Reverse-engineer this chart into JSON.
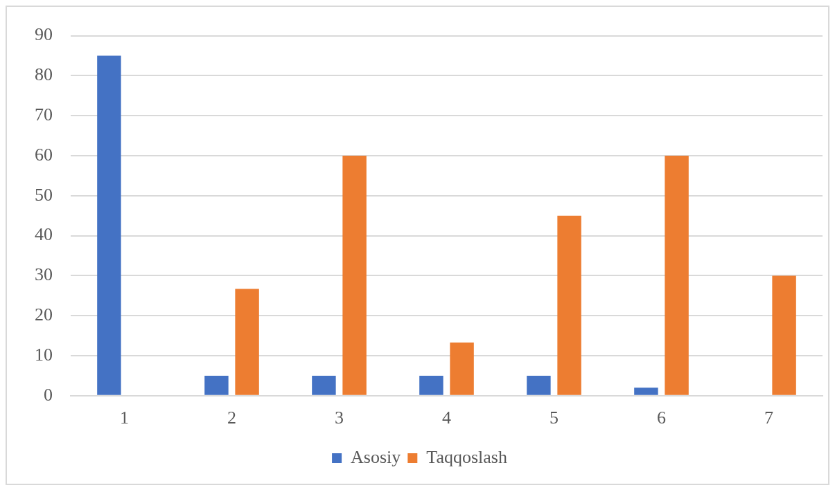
{
  "chart_data": {
    "type": "bar",
    "categories": [
      "1",
      "2",
      "3",
      "4",
      "5",
      "6",
      "7"
    ],
    "series": [
      {
        "name": "Asosiy",
        "color": "#4472c4",
        "values": [
          85,
          5,
          5,
          5,
          5,
          2,
          0
        ]
      },
      {
        "name": "Taqqoslash",
        "color": "#ed7d31",
        "values": [
          0,
          26.7,
          60,
          13.3,
          45,
          60,
          30
        ]
      }
    ],
    "ylim": [
      0,
      90
    ],
    "yticks": [
      0,
      10,
      20,
      30,
      40,
      50,
      60,
      70,
      80,
      90
    ],
    "grid": "y",
    "legend": "bottom"
  }
}
